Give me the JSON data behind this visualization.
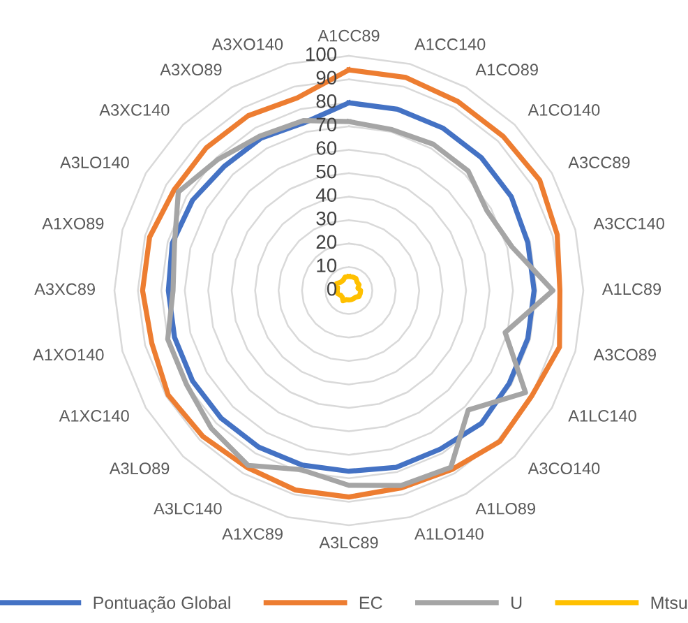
{
  "chart_data": {
    "type": "radar",
    "categories": [
      "A1CC89",
      "A1CC140",
      "A1CO89",
      "A1CO140",
      "A3CC89",
      "A3CC140",
      "A1LC89",
      "A3CO89",
      "A1LC140",
      "A3CO140",
      "A1LO89",
      "A1LO140",
      "A3LC89",
      "A1XC89",
      "A3LC140",
      "A3LO89",
      "A1XC140",
      "A1XO140",
      "A3XC89",
      "A1XO89",
      "A3LO140",
      "A3XC140",
      "A3XO89",
      "A3XO140"
    ],
    "series": [
      {
        "name": "Pontuação Global",
        "color": "#4472c4",
        "values": [
          80,
          80,
          80,
          80,
          80,
          79,
          79,
          79,
          79,
          80,
          78,
          78,
          77,
          77,
          77,
          77,
          77,
          77,
          77,
          78,
          77,
          75,
          75,
          74
        ]
      },
      {
        "name": "EC",
        "color": "#ed7d31",
        "values": [
          94,
          94,
          93,
          93,
          94,
          92,
          90,
          93,
          90,
          91,
          88,
          87,
          88,
          88,
          87,
          88,
          89,
          87,
          88,
          88,
          86,
          86,
          86,
          85
        ]
      },
      {
        "name": "U",
        "color": "#a5a5a5",
        "values": [
          72,
          71,
          72,
          72,
          68,
          72,
          87,
          69,
          87,
          72,
          87,
          86,
          83,
          79,
          86,
          83,
          80,
          80,
          75,
          77,
          84,
          79,
          76,
          75
        ]
      },
      {
        "name": "Mtsu",
        "color": "#ffc000",
        "values": [
          6,
          6,
          6,
          5,
          5,
          4,
          5,
          5,
          5,
          4,
          4,
          4,
          4,
          4,
          5,
          4,
          4,
          5,
          5,
          5,
          6,
          5,
          5,
          6
        ]
      }
    ],
    "ylim": [
      0,
      100
    ],
    "yticks": [
      0,
      10,
      20,
      30,
      40,
      50,
      60,
      70,
      80,
      90,
      100
    ],
    "grid": true,
    "legend": "bottom",
    "line_style": "solid",
    "marker": "none"
  }
}
